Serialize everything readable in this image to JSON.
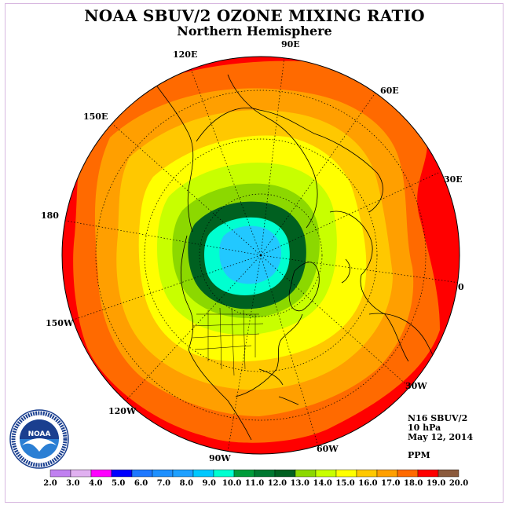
{
  "title": "NOAA SBUV/2 OZONE MIXING RATIO",
  "subtitle": "Northern Hemisphere",
  "longitude_labels": [
    "90E",
    "60E",
    "30E",
    "0",
    "30W",
    "60W",
    "90W",
    "120W",
    "150W",
    "180",
    "150E",
    "120E"
  ],
  "info": {
    "satellite": "N16 SBUV/2",
    "pressure": "10 hPa",
    "date": "May 12, 2014",
    "units": "PPM"
  },
  "logo": {
    "text": "NOAA",
    "ring_text": "NATIONAL OCEANIC AND ATMOSPHERIC ADMINISTRATION · U.S. DEPARTMENT OF COMMERCE",
    "colors": {
      "ring": "#ffffff",
      "top": "#1a3f8f",
      "bottom": "#2b7fd4",
      "bird": "#ffffff"
    }
  },
  "colorbar": {
    "ticks": [
      "2.0",
      "3.0",
      "4.0",
      "5.0",
      "6.0",
      "7.0",
      "8.0",
      "9.0",
      "10.0",
      "11.0",
      "12.0",
      "13.0",
      "14.0",
      "15.0",
      "16.0",
      "17.0",
      "18.0",
      "19.0",
      "20.0"
    ],
    "colors": [
      "#c080f0",
      "#e0b0f0",
      "#ff00ff",
      "#0000ff",
      "#1e78ff",
      "#1e90ff",
      "#1ea0ff",
      "#00c8ff",
      "#00ffd0",
      "#009b3a",
      "#007830",
      "#006020",
      "#8cd800",
      "#c8ff00",
      "#ffff00",
      "#ffc800",
      "#ff9f00",
      "#ff6a00",
      "#ff0000",
      "#8b5a3c"
    ]
  },
  "map_data": {
    "projection": "north-polar-stereographic",
    "variable": "ozone mixing ratio",
    "pressure_level": "10 hPa",
    "units": "PPM",
    "pole_minimum_ppm": 9.5,
    "outer_maximum_ppm": 19.0,
    "bands": [
      {
        "range": "18.0-19.0+",
        "color": "#ff0000"
      },
      {
        "range": "17.0-18.0",
        "color": "#ff6a00"
      },
      {
        "range": "16.0-17.0",
        "color": "#ff9f00"
      },
      {
        "range": "15.0-16.0",
        "color": "#ffc800"
      },
      {
        "range": "14.0-15.0",
        "color": "#ffff00"
      },
      {
        "range": "13.0-14.0",
        "color": "#c8ff00"
      },
      {
        "range": "12.0-13.0",
        "color": "#8cd800"
      },
      {
        "range": "11.0-12.0",
        "color": "#007830"
      },
      {
        "range": "10.0-11.0",
        "color": "#00ffd0"
      },
      {
        "range": "9.0-10.0",
        "color": "#00c8ff"
      }
    ]
  }
}
